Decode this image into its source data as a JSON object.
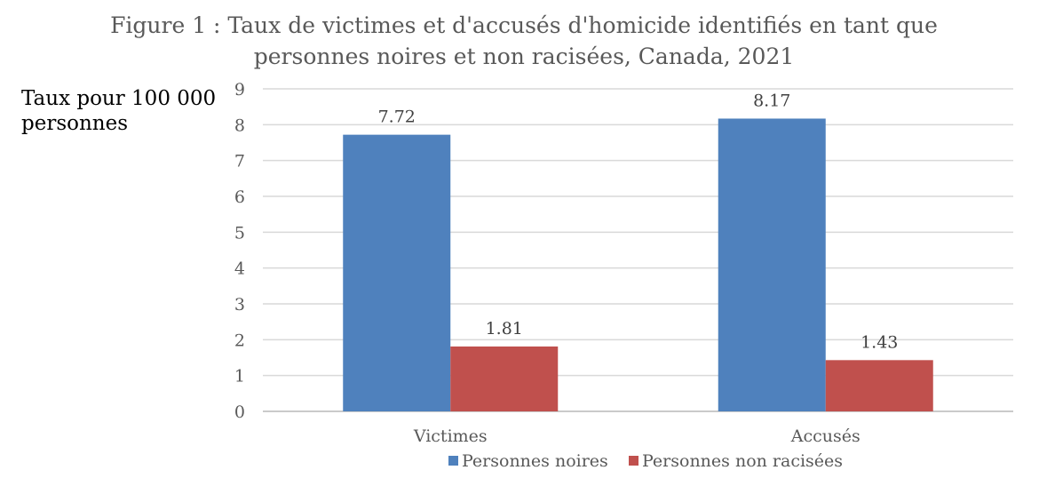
{
  "chart_data": {
    "type": "bar",
    "title_line1": "Figure 1 : Taux de victimes et d'accusés d'homicide identifiés en tant que",
    "title_line2": "personnes noires et non racisées, Canada, 2021",
    "ylabel_line1": "Taux pour 100 000",
    "ylabel_line2": "personnes",
    "xlabel": "",
    "categories": [
      "Victimes",
      "Accusés"
    ],
    "series": [
      {
        "name": "Personnes noires",
        "values": [
          7.72,
          8.17
        ],
        "labels": [
          "7.72",
          "8.17"
        ],
        "color": "#4f81bd"
      },
      {
        "name": "Personnes non racisées",
        "values": [
          1.81,
          1.43
        ],
        "labels": [
          "1.81",
          "1.43"
        ],
        "color": "#c0504d"
      }
    ],
    "ylim": [
      0,
      9
    ],
    "yticks": [
      "0",
      "1",
      "2",
      "3",
      "4",
      "5",
      "6",
      "7",
      "8",
      "9"
    ],
    "grid": true,
    "gridline_color": "#d9d9d9",
    "legend_position": "bottom"
  }
}
